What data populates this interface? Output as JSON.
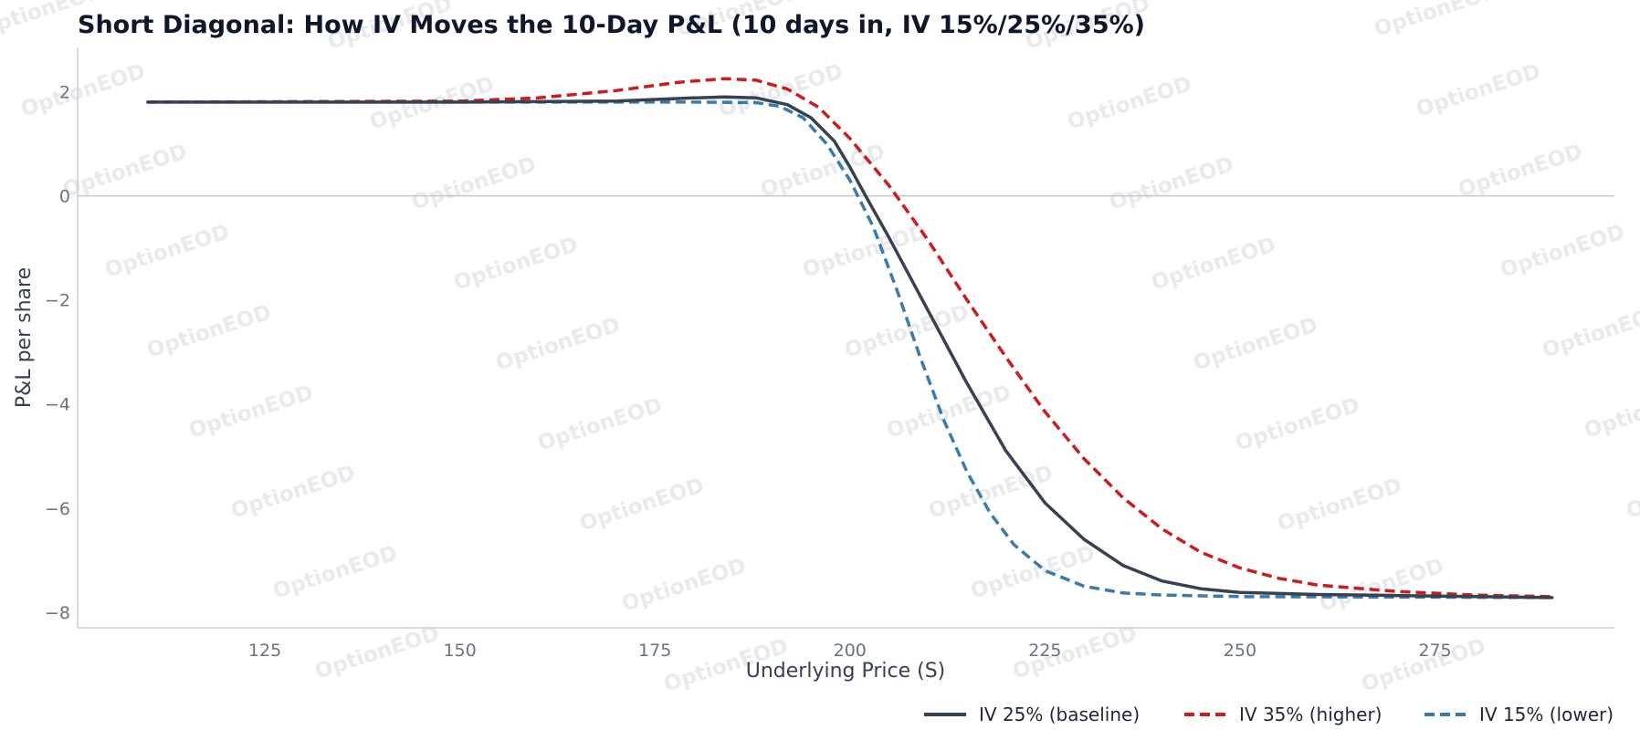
{
  "watermark": {
    "text": "OptionEOD"
  },
  "chart_data": {
    "type": "line",
    "title": "Short Diagonal: How IV Moves the 10-Day P&L (10 days in, IV 15%/25%/35%)",
    "xlabel": "Underlying Price (S)",
    "ylabel": "P&L per share",
    "xlim": [
      101,
      298
    ],
    "ylim": [
      -8.3,
      2.85
    ],
    "xticks": [
      125,
      150,
      175,
      200,
      225,
      250,
      275
    ],
    "yticks": [
      -8,
      -6,
      -4,
      -2,
      0,
      2
    ],
    "grid": false,
    "zero_line": true,
    "legend_position": "bottom-right",
    "series": [
      {
        "name": "IV 25% (baseline)",
        "color": "#374151",
        "dash": "solid",
        "points": [
          [
            110,
            1.8
          ],
          [
            150,
            1.8
          ],
          [
            170,
            1.82
          ],
          [
            180,
            1.88
          ],
          [
            184,
            1.9
          ],
          [
            188,
            1.88
          ],
          [
            192,
            1.75
          ],
          [
            195,
            1.5
          ],
          [
            198,
            1.05
          ],
          [
            200,
            0.55
          ],
          [
            202,
            0.0
          ],
          [
            205,
            -0.8
          ],
          [
            210,
            -2.2
          ],
          [
            215,
            -3.6
          ],
          [
            220,
            -4.9
          ],
          [
            225,
            -5.9
          ],
          [
            230,
            -6.6
          ],
          [
            235,
            -7.1
          ],
          [
            240,
            -7.4
          ],
          [
            245,
            -7.55
          ],
          [
            250,
            -7.62
          ],
          [
            260,
            -7.66
          ],
          [
            270,
            -7.68
          ],
          [
            280,
            -7.7
          ],
          [
            290,
            -7.72
          ]
        ]
      },
      {
        "name": "IV 35% (higher)",
        "color": "#c81e1e",
        "dash": "dashed",
        "points": [
          [
            110,
            1.8
          ],
          [
            150,
            1.82
          ],
          [
            160,
            1.88
          ],
          [
            170,
            2.02
          ],
          [
            178,
            2.18
          ],
          [
            184,
            2.25
          ],
          [
            188,
            2.22
          ],
          [
            192,
            2.05
          ],
          [
            196,
            1.7
          ],
          [
            200,
            1.1
          ],
          [
            205,
            0.2
          ],
          [
            210,
            -0.85
          ],
          [
            215,
            -2.0
          ],
          [
            220,
            -3.1
          ],
          [
            225,
            -4.15
          ],
          [
            230,
            -5.05
          ],
          [
            235,
            -5.8
          ],
          [
            240,
            -6.4
          ],
          [
            245,
            -6.85
          ],
          [
            250,
            -7.15
          ],
          [
            255,
            -7.35
          ],
          [
            260,
            -7.48
          ],
          [
            270,
            -7.6
          ],
          [
            280,
            -7.67
          ],
          [
            290,
            -7.7
          ]
        ]
      },
      {
        "name": "IV 15% (lower)",
        "color": "#3a7bad",
        "dash": "dashed",
        "points": [
          [
            110,
            1.8
          ],
          [
            160,
            1.8
          ],
          [
            180,
            1.8
          ],
          [
            188,
            1.79
          ],
          [
            191,
            1.72
          ],
          [
            194,
            1.5
          ],
          [
            197,
            1.0
          ],
          [
            200,
            0.3
          ],
          [
            203,
            -0.6
          ],
          [
            206,
            -1.8
          ],
          [
            209,
            -3.1
          ],
          [
            212,
            -4.3
          ],
          [
            215,
            -5.3
          ],
          [
            218,
            -6.1
          ],
          [
            221,
            -6.7
          ],
          [
            225,
            -7.2
          ],
          [
            230,
            -7.5
          ],
          [
            235,
            -7.63
          ],
          [
            240,
            -7.67
          ],
          [
            250,
            -7.7
          ],
          [
            270,
            -7.71
          ],
          [
            290,
            -7.72
          ]
        ]
      }
    ]
  }
}
